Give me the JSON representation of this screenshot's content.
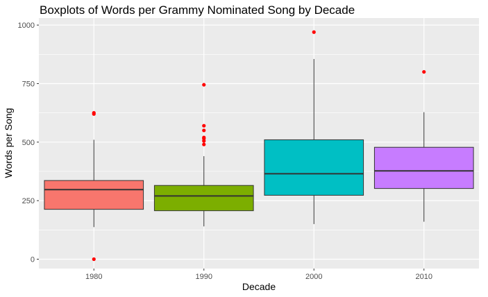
{
  "chart_data": {
    "type": "boxplot",
    "title": "Boxplots of Words per Grammy Nominated Song by Decade",
    "xlabel": "Decade",
    "ylabel": "Words per Song",
    "ylim": [
      -40,
      1030
    ],
    "yticks": [
      0,
      250,
      500,
      750,
      1000
    ],
    "yticklabels": [
      "0",
      "250",
      "500",
      "750",
      "1000"
    ],
    "grid": true,
    "legend": "none",
    "outlier_color": "#ff0000",
    "panel_color": "#ebebeb",
    "categories": [
      "1980",
      "1990",
      "2000",
      "2010"
    ],
    "boxes": [
      {
        "category": "1980",
        "whisker_low": 137,
        "q1": 213,
        "median": 297,
        "q3": 336,
        "whisker_high": 510,
        "outliers": [
          0,
          620,
          625
        ],
        "color": "#f8766d"
      },
      {
        "category": "1990",
        "whisker_low": 140,
        "q1": 207,
        "median": 270,
        "q3": 315,
        "whisker_high": 440,
        "outliers": [
          490,
          505,
          515,
          520,
          550,
          570,
          745
        ],
        "color": "#7cae00"
      },
      {
        "category": "2000",
        "whisker_low": 150,
        "q1": 273,
        "median": 365,
        "q3": 510,
        "whisker_high": 855,
        "outliers": [
          970
        ],
        "color": "#00bfc4"
      },
      {
        "category": "2010",
        "whisker_low": 160,
        "q1": 302,
        "median": 377,
        "q3": 478,
        "whisker_high": 628,
        "outliers": [
          800
        ],
        "color": "#c77cff"
      }
    ]
  }
}
